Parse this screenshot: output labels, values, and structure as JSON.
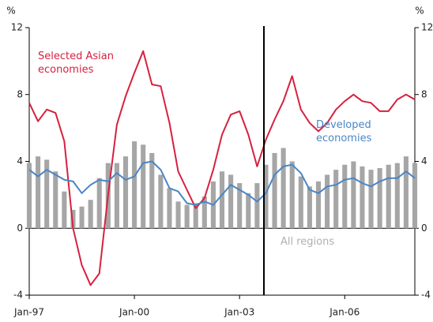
{
  "chart_data": {
    "type": "bar_line",
    "y_unit": "%",
    "categories": [
      "Jan-97",
      null,
      null,
      null,
      null,
      null,
      null,
      null,
      null,
      null,
      null,
      null,
      "Jan-00",
      null,
      null,
      null,
      null,
      null,
      null,
      null,
      null,
      null,
      null,
      null,
      "Jan-03",
      null,
      null,
      null,
      null,
      null,
      null,
      null,
      null,
      null,
      null,
      null,
      "Jan-06",
      null,
      null,
      null,
      null,
      null,
      null,
      null,
      null
    ],
    "series": [
      {
        "name": "All regions",
        "kind": "bar",
        "color": "#a6a6a6",
        "values": [
          3.9,
          4.3,
          4.1,
          3.4,
          2.2,
          1.1,
          1.3,
          1.7,
          3.0,
          3.9,
          3.9,
          4.3,
          5.2,
          5.0,
          4.5,
          3.2,
          2.4,
          1.6,
          1.4,
          1.5,
          1.9,
          2.8,
          3.4,
          3.2,
          2.7,
          2.1,
          2.7,
          3.8,
          4.5,
          4.8,
          4.0,
          3.1,
          2.5,
          2.8,
          3.2,
          3.5,
          3.8,
          4.0,
          3.7,
          3.5,
          3.6,
          3.8,
          3.9,
          4.3,
          3.9
        ]
      },
      {
        "name": "Selected Asian economies",
        "kind": "line",
        "color": "#d6213f",
        "values": [
          7.5,
          6.4,
          7.1,
          6.9,
          5.2,
          0,
          -2.2,
          -3.4,
          -2.7,
          2.0,
          6.2,
          7.9,
          9.3,
          10.6,
          8.6,
          8.5,
          6.3,
          3.4,
          2.3,
          1.2,
          1.8,
          3.5,
          5.6,
          6.8,
          7.0,
          5.6,
          3.7,
          5.3,
          6.5,
          7.6,
          9.1,
          7.1,
          6.3,
          5.8,
          6.3,
          7.1,
          7.6,
          8.0,
          7.6,
          7.5,
          7.0,
          7.0,
          7.7,
          8.0,
          7.7
        ]
      },
      {
        "name": "Developed economies",
        "kind": "line",
        "color": "#4a86c5",
        "values": [
          3.5,
          3.1,
          3.5,
          3.2,
          2.9,
          2.8,
          2.1,
          2.6,
          2.9,
          2.8,
          3.3,
          2.9,
          3.1,
          3.9,
          4.0,
          3.5,
          2.4,
          2.2,
          1.5,
          1.4,
          1.6,
          1.4,
          2.0,
          2.6,
          2.3,
          2.0,
          1.6,
          2.1,
          3.2,
          3.7,
          3.8,
          3.3,
          2.3,
          2.1,
          2.5,
          2.6,
          2.9,
          3.0,
          2.7,
          2.5,
          2.8,
          3.0,
          3.0,
          3.4,
          3.0
        ]
      }
    ],
    "ylim": [
      -4,
      12
    ],
    "yticks": [
      -4,
      0,
      4,
      8,
      12
    ],
    "y2lim": [
      -4,
      12
    ],
    "y2ticks": [
      -4,
      0,
      4,
      8,
      12
    ]
  }
}
